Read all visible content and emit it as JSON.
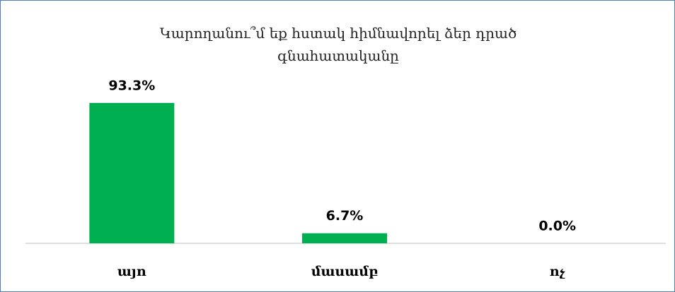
{
  "chart_data": {
    "type": "bar",
    "title": "Կարողանու՞մ եք հստակ հիմնավորել ձեր դրած գնահատականը",
    "categories": [
      "այո",
      "մասամբ",
      "ոչ"
    ],
    "values": [
      93.3,
      6.7,
      0.0
    ],
    "value_labels": [
      "93.3%",
      "6.7%",
      "0.0%"
    ],
    "color": "#00b050"
  }
}
